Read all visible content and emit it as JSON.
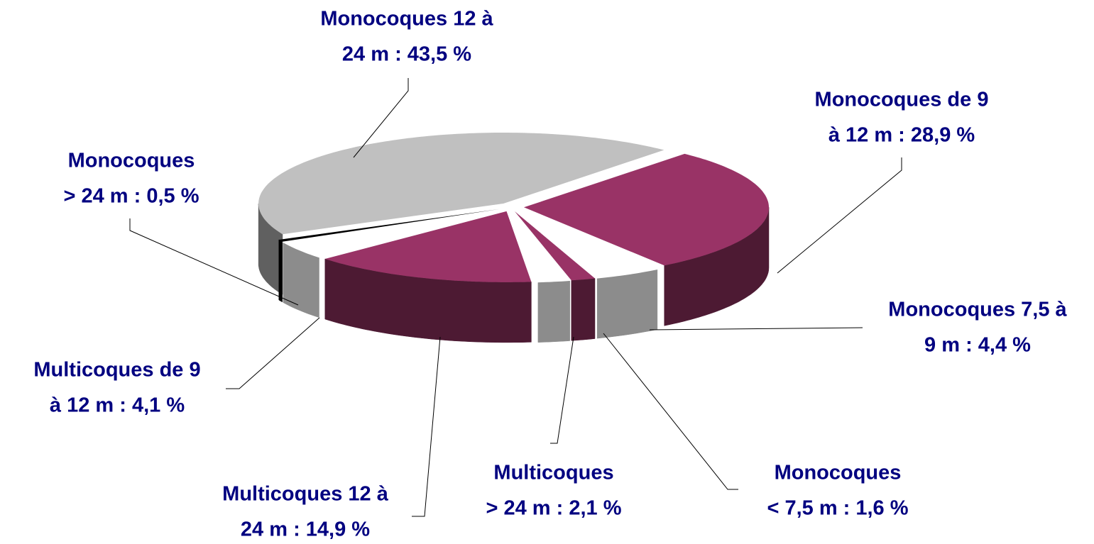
{
  "chart_data": {
    "type": "pie3d",
    "labels": [
      [
        "Monocoques 12 à",
        "24 m : 43,5 %"
      ],
      [
        "Monocoques de 9",
        "à 12 m : 28,9 %"
      ],
      [
        "Monocoques 7,5 à",
        "9 m : 4,4 %"
      ],
      [
        "Monocoques",
        "< 7,5 m : 1,6 %"
      ],
      [
        "Multicoques",
        "> 24 m : 2,1 %"
      ],
      [
        "Multicoques 12 à",
        "24 m : 14,9 %"
      ],
      [
        "Multicoques de 9",
        "à 12 m : 4,1 %"
      ],
      [
        "Monocoques",
        "> 24 m : 0,5 %"
      ]
    ],
    "values": [
      43.5,
      28.9,
      4.4,
      1.6,
      2.1,
      14.9,
      4.1,
      0.5
    ],
    "colors": [
      "#c0c0c0",
      "#993366",
      "#ffffff",
      "#993366",
      "#ffffff",
      "#993366",
      "#ffffff",
      "#000000"
    ]
  }
}
